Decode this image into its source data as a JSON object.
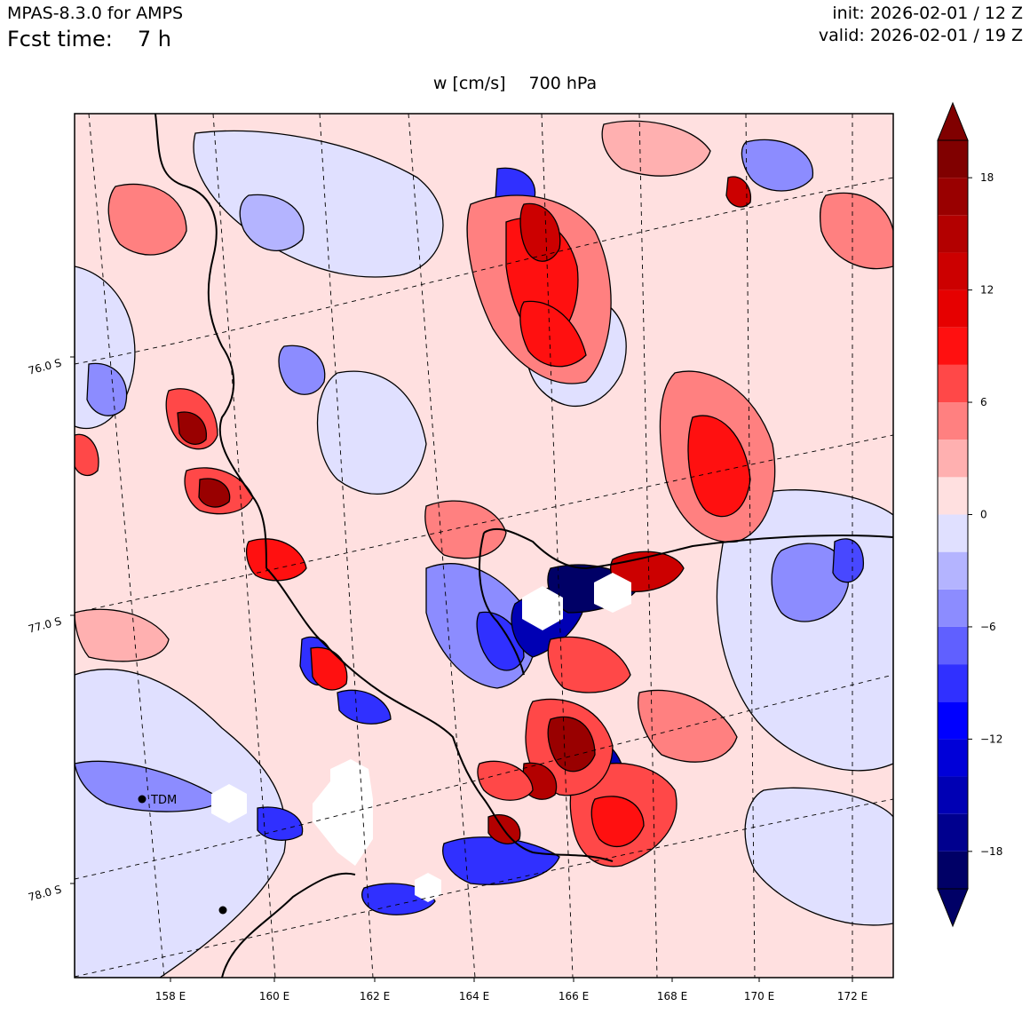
{
  "header": {
    "model": "MPAS-8.3.0 for AMPS",
    "fcst_label": "Fcst time:",
    "fcst_value": "7 h",
    "init": "init: 2026-02-01 / 12 Z",
    "valid": "valid: 2026-02-01 / 19 Z"
  },
  "plot": {
    "variable": "w [cm/s]",
    "level": "700 hPa"
  },
  "map": {
    "lon_labels": [
      "158 E",
      "160 E",
      "162 E",
      "164 E",
      "166 E",
      "168 E",
      "170 E",
      "172 E"
    ],
    "lat_labels": [
      "76.0 S",
      "77.0 S",
      "78.0 S"
    ],
    "station": "TDM"
  },
  "colorbar": {
    "tick_labels": [
      "18",
      "12",
      "6",
      "0",
      "−6",
      "−12",
      "−18"
    ],
    "tick_values": [
      18,
      12,
      6,
      0,
      -6,
      -12,
      -18
    ],
    "levels": [
      -20,
      -18,
      -16,
      -14,
      -12,
      -10,
      -8,
      -6,
      -4,
      -2,
      0,
      2,
      4,
      6,
      8,
      10,
      12,
      14,
      16,
      18,
      20
    ],
    "colors": [
      "#000066",
      "#00008e",
      "#0000b4",
      "#0000d8",
      "#0000ff",
      "#3030ff",
      "#6060ff",
      "#8c8cff",
      "#b4b4ff",
      "#e0e0ff",
      "#ffe0e0",
      "#ffb0b0",
      "#ff8080",
      "#ff4848",
      "#ff1010",
      "#e60000",
      "#cc0000",
      "#b30000",
      "#990000",
      "#800000"
    ]
  }
}
